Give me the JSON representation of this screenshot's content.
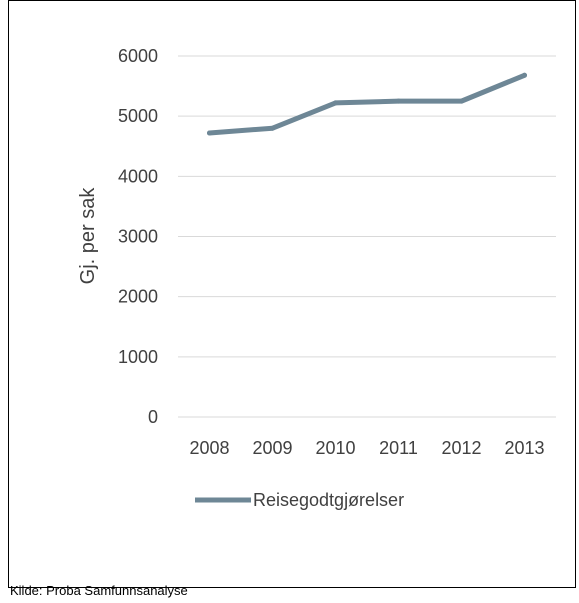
{
  "chart_data": {
    "type": "line",
    "categories": [
      "2008",
      "2009",
      "2010",
      "2011",
      "2012",
      "2013"
    ],
    "series": [
      {
        "name": "Reisegodtgjørelser",
        "values": [
          4720,
          4800,
          5220,
          5250,
          5250,
          5680
        ],
        "color": "#6E8796"
      }
    ],
    "ylabel": "Gj. per sak",
    "ylim": [
      0,
      6000
    ],
    "yticks": [
      0,
      1000,
      2000,
      3000,
      4000,
      5000,
      6000
    ],
    "grid": true,
    "legend": "bottom"
  },
  "colors": {
    "grid": "#D9D9D9",
    "text": "#404040"
  },
  "source": "Kilde: Proba Samfunnsanalyse"
}
